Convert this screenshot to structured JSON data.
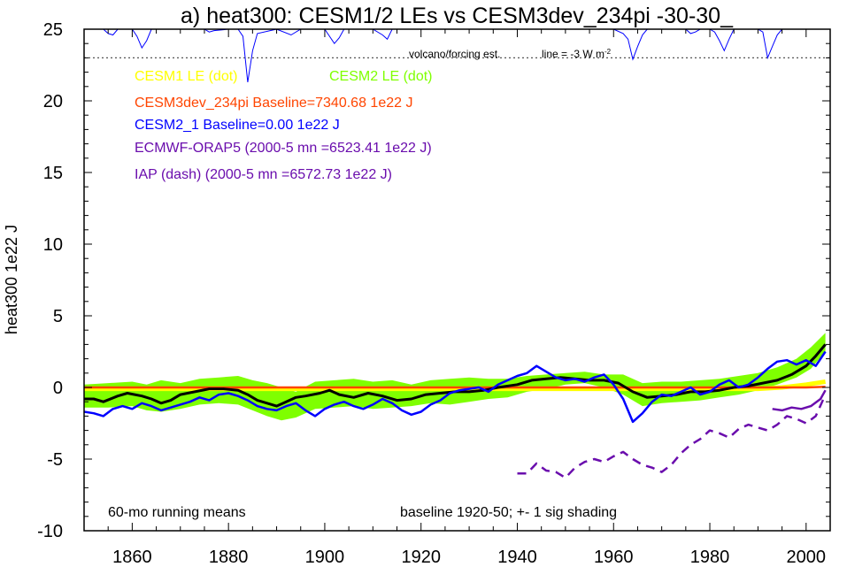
{
  "chart_data": {
    "type": "line",
    "title": "a) heat300: CESM1/2 LEs vs CESM3dev_234pi -30-30_",
    "ylabel": "heat300 1e22 J",
    "xlabel": "",
    "xlim": [
      1850,
      2005
    ],
    "ylim": [
      -10,
      25
    ],
    "x_ticks": [
      1860,
      1880,
      1900,
      1920,
      1940,
      1960,
      1980,
      2000
    ],
    "y_ticks": [
      -10,
      -5,
      0,
      5,
      10,
      15,
      20,
      25
    ],
    "y_tick_labels": [
      "-10",
      "-5",
      "0",
      "5",
      "10",
      "15",
      "20",
      "25"
    ],
    "legend": [
      {
        "text": "CESM1 LE (dot)",
        "color": "#ffff00"
      },
      {
        "text": "CESM2 LE (dot)",
        "color": "#7fff00"
      },
      {
        "text": "CESM3dev_234pi Baseline=7340.68 1e22 J",
        "color": "#ff4500"
      },
      {
        "text": "CESM2_1 Baseline=0.00 1e22 J",
        "color": "#0000ff"
      },
      {
        "text": "ECMWF-ORAP5 (2000-5 mn =6523.41 1e22 J)",
        "color": "#6a0dad"
      },
      {
        "text": "IAP (dash) (2000-5 mn =6572.73 1e22 J)",
        "color": "#6a0dad"
      }
    ],
    "annotations": {
      "volcano": "volcano/forcing est.",
      "line_note": "line = -3 W m",
      "line_note_sup": "-2",
      "running": "60-mo running means",
      "baseline": "baseline 1920-50; +- 1 sig shading"
    },
    "volcano_ref_y": 23,
    "series": [
      {
        "name": "CESM2 LE spread",
        "color": "#7fff00",
        "x": [
          1850,
          1855,
          1860,
          1863,
          1866,
          1870,
          1874,
          1878,
          1882,
          1885,
          1888,
          1891,
          1894,
          1898,
          1902,
          1906,
          1910,
          1914,
          1918,
          1922,
          1926,
          1930,
          1934,
          1938,
          1942,
          1946,
          1950,
          1954,
          1958,
          1962,
          1966,
          1970,
          1974,
          1978,
          1982,
          1986,
          1990,
          1994,
          1998,
          2001,
          2004
        ],
        "upper": [
          0.2,
          0.3,
          0.4,
          0.2,
          0.5,
          0.3,
          0.6,
          0.7,
          0.8,
          0.5,
          0.3,
          0.0,
          -0.3,
          0.4,
          0.5,
          0.6,
          0.4,
          0.5,
          0.2,
          0.5,
          0.6,
          0.7,
          0.6,
          0.6,
          0.8,
          0.9,
          1.0,
          1.1,
          0.9,
          0.9,
          0.3,
          0.4,
          0.4,
          0.5,
          0.6,
          0.8,
          1.0,
          1.4,
          2.0,
          2.8,
          3.8
        ],
        "lower": [
          -1.4,
          -1.4,
          -1.3,
          -1.6,
          -1.7,
          -1.5,
          -1.2,
          -1.1,
          -1.2,
          -1.6,
          -2.0,
          -2.3,
          -2.1,
          -1.5,
          -1.4,
          -1.3,
          -1.5,
          -1.4,
          -1.3,
          -1.1,
          -1.2,
          -1.0,
          -0.8,
          -0.7,
          -0.3,
          -0.1,
          0.2,
          0.3,
          0.0,
          -0.5,
          -1.3,
          -1.1,
          -1.0,
          -0.9,
          -0.7,
          -0.5,
          -0.2,
          0.2,
          0.7,
          1.3,
          2.5
        ]
      },
      {
        "name": "CESM1 LE",
        "color": "#ffff00",
        "x": [
          1850,
          1900,
          1950,
          1990,
          1995,
          2000,
          2004
        ],
        "values": [
          -0.1,
          -0.1,
          -0.1,
          -0.1,
          0.0,
          0.2,
          0.4
        ]
      },
      {
        "name": "CESM3dev_234pi",
        "color": "#ff4500",
        "x": [
          1850,
          1900,
          1950,
          2000,
          2004
        ],
        "values": [
          0.0,
          0.0,
          0.0,
          0.0,
          0.05
        ]
      },
      {
        "name": "CESM2 LE mean",
        "color": "#000000",
        "x": [
          1850,
          1852,
          1854,
          1857,
          1859,
          1862,
          1864,
          1866,
          1868,
          1870,
          1873,
          1876,
          1879,
          1882,
          1884,
          1886,
          1888,
          1890,
          1892,
          1894,
          1896,
          1899,
          1901,
          1903,
          1906,
          1909,
          1912,
          1915,
          1918,
          1921,
          1924,
          1927,
          1930,
          1933,
          1936,
          1940,
          1943,
          1946,
          1949,
          1952,
          1955,
          1958,
          1961,
          1964,
          1967,
          1970,
          1973,
          1976,
          1979,
          1982,
          1985,
          1988,
          1991,
          1994,
          1997,
          2000,
          2002,
          2004
        ],
        "values": [
          -0.8,
          -0.8,
          -1.0,
          -0.6,
          -0.4,
          -0.6,
          -0.8,
          -1.1,
          -0.9,
          -0.5,
          -0.3,
          -0.1,
          -0.1,
          -0.2,
          -0.5,
          -0.9,
          -1.1,
          -1.3,
          -1.0,
          -0.7,
          -0.6,
          -0.4,
          -0.2,
          -0.5,
          -0.7,
          -0.4,
          -0.6,
          -0.9,
          -0.8,
          -0.5,
          -0.4,
          -0.3,
          -0.3,
          -0.2,
          0.0,
          0.2,
          0.5,
          0.6,
          0.7,
          0.6,
          0.5,
          0.5,
          0.3,
          -0.3,
          -0.7,
          -0.6,
          -0.5,
          -0.3,
          -0.3,
          -0.2,
          0.0,
          0.1,
          0.3,
          0.5,
          0.9,
          1.5,
          2.2,
          3.0
        ]
      },
      {
        "name": "CESM2_1",
        "color": "#0000ff",
        "x": [
          1850,
          1852,
          1854,
          1856,
          1858,
          1860,
          1862,
          1864,
          1866,
          1868,
          1870,
          1872,
          1874,
          1876,
          1878,
          1880,
          1882,
          1884,
          1886,
          1888,
          1890,
          1892,
          1894,
          1896,
          1898,
          1900,
          1902,
          1904,
          1906,
          1908,
          1910,
          1912,
          1914,
          1916,
          1918,
          1920,
          1922,
          1924,
          1926,
          1928,
          1930,
          1932,
          1934,
          1936,
          1938,
          1940,
          1942,
          1944,
          1946,
          1948,
          1950,
          1952,
          1954,
          1956,
          1958,
          1960,
          1962,
          1964,
          1966,
          1968,
          1970,
          1972,
          1974,
          1976,
          1978,
          1980,
          1982,
          1984,
          1986,
          1988,
          1990,
          1992,
          1994,
          1996,
          1998,
          2000,
          2002,
          2004
        ],
        "values": [
          -1.7,
          -1.8,
          -2.0,
          -1.5,
          -1.3,
          -1.5,
          -1.1,
          -1.3,
          -1.6,
          -1.4,
          -1.2,
          -1.0,
          -0.7,
          -0.9,
          -0.5,
          -0.4,
          -0.6,
          -0.9,
          -1.3,
          -1.5,
          -1.6,
          -1.3,
          -1.1,
          -1.6,
          -2.0,
          -1.5,
          -1.2,
          -1.0,
          -1.3,
          -1.5,
          -1.2,
          -0.8,
          -1.1,
          -1.6,
          -1.9,
          -1.7,
          -1.2,
          -0.9,
          -0.4,
          -0.2,
          -0.1,
          0.0,
          -0.3,
          0.2,
          0.5,
          0.8,
          1.0,
          1.5,
          1.1,
          0.7,
          0.5,
          0.6,
          0.4,
          0.7,
          0.9,
          0.2,
          -0.8,
          -2.4,
          -1.8,
          -1.0,
          -0.5,
          -0.6,
          -0.3,
          0.0,
          -0.5,
          -0.3,
          0.2,
          0.5,
          0.0,
          0.2,
          0.7,
          1.3,
          1.8,
          1.9,
          1.6,
          1.9,
          1.5,
          2.5
        ]
      },
      {
        "name": "IAP",
        "color": "#6a0dad",
        "x": [
          1940,
          1942,
          1944,
          1946,
          1948,
          1950,
          1952,
          1954,
          1956,
          1958,
          1960,
          1962,
          1964,
          1966,
          1968,
          1970,
          1972,
          1974,
          1976,
          1978,
          1980,
          1982,
          1984,
          1986,
          1988,
          1990,
          1992,
          1994,
          1996,
          1998,
          2000,
          2002,
          2004
        ],
        "values": [
          -6.0,
          -6.0,
          -5.3,
          -5.8,
          -5.9,
          -6.3,
          -5.6,
          -5.2,
          -5.0,
          -5.2,
          -4.8,
          -4.5,
          -5.0,
          -5.4,
          -5.6,
          -5.9,
          -5.4,
          -4.6,
          -4.0,
          -3.6,
          -3.0,
          -3.2,
          -3.5,
          -2.9,
          -2.6,
          -2.8,
          -3.0,
          -2.6,
          -2.0,
          -2.2,
          -2.5,
          -2.0,
          -0.5
        ]
      },
      {
        "name": "ECMWF-ORAP5",
        "color": "#6a0dad",
        "x": [
          1993,
          1995,
          1997,
          1999,
          2001,
          2003,
          2004
        ],
        "values": [
          -1.5,
          -1.6,
          -1.4,
          -1.5,
          -1.3,
          -0.8,
          -0.2
        ]
      }
    ],
    "volcano_series": {
      "x": [
        1850,
        1854,
        1855,
        1856,
        1857,
        1860,
        1861,
        1862,
        1863,
        1864,
        1870,
        1875,
        1876,
        1877,
        1880,
        1882,
        1883,
        1884,
        1885,
        1886,
        1890,
        1893,
        1895,
        1900,
        1901,
        1902,
        1903,
        1904,
        1910,
        1912,
        1913,
        1914,
        1920,
        1930,
        1940,
        1950,
        1960,
        1962,
        1963,
        1964,
        1965,
        1966,
        1967,
        1970,
        1975,
        1976,
        1977,
        1978,
        1980,
        1981,
        1982,
        1983,
        1984,
        1985,
        1990,
        1991,
        1992,
        1993,
        1994,
        1995,
        2000,
        2004
      ],
      "values": [
        25,
        25,
        24.7,
        24.6,
        25,
        25,
        24.5,
        23.7,
        24.2,
        25,
        25,
        25,
        24.8,
        24.9,
        25,
        25,
        24.5,
        21.3,
        23.5,
        24.7,
        25,
        24.6,
        25,
        25,
        24.5,
        24.0,
        24.4,
        25,
        25,
        24.6,
        24.3,
        25,
        25,
        25,
        25,
        25,
        25,
        24.7,
        24.3,
        22.9,
        23.8,
        24.6,
        25,
        25,
        25,
        24.7,
        24.8,
        25,
        25,
        24.8,
        24.2,
        23.5,
        24.3,
        25,
        25,
        24.8,
        23.0,
        23.8,
        24.6,
        25,
        25,
        25
      ]
    }
  }
}
